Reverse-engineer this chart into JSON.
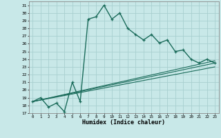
{
  "xlabel": "Humidex (Indice chaleur)",
  "bg_color": "#c8e8e8",
  "grid_color": "#a8d0d0",
  "line_color": "#1a6b5a",
  "xlim": [
    -0.5,
    23.5
  ],
  "ylim": [
    17,
    31.5
  ],
  "xticks": [
    0,
    1,
    2,
    3,
    4,
    5,
    6,
    7,
    8,
    9,
    10,
    11,
    12,
    13,
    14,
    15,
    16,
    17,
    18,
    19,
    20,
    21,
    22,
    23
  ],
  "yticks": [
    17,
    18,
    19,
    20,
    21,
    22,
    23,
    24,
    25,
    26,
    27,
    28,
    29,
    30,
    31
  ],
  "main_curve": [
    [
      0,
      18.5
    ],
    [
      1,
      19.0
    ],
    [
      2,
      17.8
    ],
    [
      3,
      18.3
    ],
    [
      4,
      17.2
    ],
    [
      5,
      21.0
    ],
    [
      6,
      18.5
    ],
    [
      7,
      29.2
    ],
    [
      8,
      29.5
    ],
    [
      9,
      31.0
    ],
    [
      10,
      29.2
    ],
    [
      11,
      30.0
    ],
    [
      12,
      28.0
    ],
    [
      13,
      27.2
    ],
    [
      14,
      26.5
    ],
    [
      15,
      27.2
    ],
    [
      16,
      26.1
    ],
    [
      17,
      26.5
    ],
    [
      18,
      25.0
    ],
    [
      19,
      25.2
    ],
    [
      20,
      24.0
    ],
    [
      21,
      23.5
    ],
    [
      22,
      24.0
    ],
    [
      23,
      23.5
    ]
  ],
  "line2": [
    [
      0,
      18.5
    ],
    [
      23,
      23.5
    ]
  ],
  "line3": [
    [
      0,
      18.5
    ],
    [
      23,
      23.0
    ]
  ],
  "line4": [
    [
      0,
      18.5
    ],
    [
      23,
      23.8
    ]
  ]
}
